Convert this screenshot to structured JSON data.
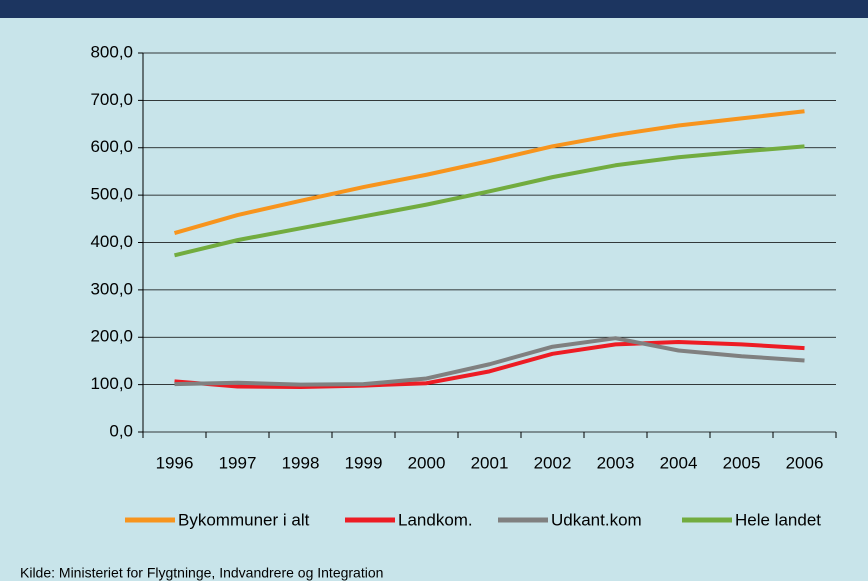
{
  "chart_data": {
    "type": "line",
    "categories": [
      "1996",
      "1997",
      "1998",
      "1999",
      "2000",
      "2001",
      "2002",
      "2003",
      "2004",
      "2005",
      "2006"
    ],
    "series": [
      {
        "name": "Bykommuner i alt",
        "color": "#f7941d",
        "values": [
          420,
          458,
          488,
          517,
          543,
          572,
          603,
          627,
          647,
          662,
          677
        ]
      },
      {
        "name": "Landkom.",
        "color": "#ed1c24",
        "values": [
          107,
          96,
          95,
          98,
          103,
          128,
          165,
          185,
          190,
          185,
          177
        ]
      },
      {
        "name": "Udkant.kom",
        "color": "#808080",
        "values": [
          101,
          104,
          100,
          101,
          113,
          143,
          180,
          198,
          172,
          160,
          151
        ]
      },
      {
        "name": "Hele landet",
        "color": "#72ac3f",
        "values": [
          373,
          405,
          430,
          455,
          480,
          508,
          538,
          563,
          580,
          592,
          603
        ]
      }
    ],
    "ylim": [
      0,
      800
    ],
    "yticks": [
      {
        "value": 0,
        "label": "0,0"
      },
      {
        "value": 100,
        "label": "100,0"
      },
      {
        "value": 200,
        "label": "200,0"
      },
      {
        "value": 300,
        "label": "300,0"
      },
      {
        "value": 400,
        "label": "400,0"
      },
      {
        "value": 500,
        "label": "500,0"
      },
      {
        "value": 600,
        "label": "600,0"
      },
      {
        "value": 700,
        "label": "700,0"
      },
      {
        "value": 800,
        "label": "800,0"
      }
    ],
    "grid": true,
    "legend": "bottom",
    "source": "Kilde: Ministeriet for Flygtninge, Indvandrere og Integration"
  }
}
